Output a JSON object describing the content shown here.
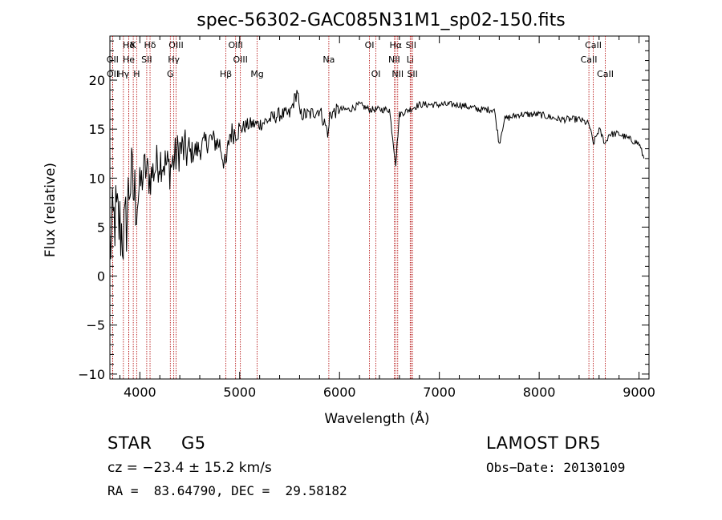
{
  "chart_data": {
    "type": "line",
    "title": "spec-56302-GAC085N31M1_sp02-150.fits",
    "xlabel": "Wavelength (Å)",
    "ylabel": "Flux (relative)",
    "xlim": [
      3700,
      9100
    ],
    "ylim": [
      -10.5,
      24.5
    ],
    "xticks": [
      4000,
      5000,
      6000,
      7000,
      8000,
      9000
    ],
    "yticks": [
      -10,
      -5,
      0,
      5,
      10,
      15,
      20
    ],
    "grid": false,
    "series": [
      {
        "x": [
          3700,
          3750,
          3800,
          3850,
          3900,
          3950,
          4000,
          4050,
          4100,
          4200,
          4300,
          4400,
          4500,
          4600,
          4700,
          4800,
          4860,
          4900,
          5000,
          5100,
          5200,
          5300,
          5400,
          5500,
          5580,
          5600,
          5700,
          5800,
          5890,
          5900,
          6000,
          6100,
          6200,
          6300,
          6400,
          6500,
          6563,
          6600,
          6700,
          6800,
          6900,
          7000,
          7200,
          7400,
          7550,
          7600,
          7650,
          7800,
          8000,
          8200,
          8400,
          8500,
          8542,
          8600,
          8662,
          8700,
          8800,
          8900,
          9000,
          9050
        ],
        "y": [
          3,
          6,
          5,
          4,
          10,
          8,
          9,
          11,
          10,
          12,
          11,
          13,
          12.5,
          13,
          14,
          13.5,
          11,
          14.5,
          15,
          15.5,
          15.5,
          16,
          16.5,
          16.5,
          19,
          16.5,
          16.5,
          17,
          14.5,
          16.5,
          17,
          17,
          17.5,
          17,
          17,
          17,
          11.5,
          16.5,
          17,
          17.5,
          17.5,
          17.5,
          17.5,
          17,
          17,
          13.5,
          16,
          16.5,
          16.5,
          16,
          16,
          15.5,
          13.5,
          15,
          13.5,
          14.5,
          14.5,
          14,
          13.5,
          12
        ]
      }
    ],
    "lines": [
      {
        "label": "Hδ",
        "x": 3889,
        "row": 0
      },
      {
        "label": "K",
        "x": 3934,
        "row": 0
      },
      {
        "label": "Hδ",
        "x": 4102,
        "row": 0
      },
      {
        "label": "OIII",
        "x": 4363,
        "row": 0
      },
      {
        "label": "OIII",
        "x": 4959,
        "row": 0
      },
      {
        "label": "OI",
        "x": 6300,
        "row": 0
      },
      {
        "label": "Hα",
        "x": 6563,
        "row": 0
      },
      {
        "label": "SII",
        "x": 6716,
        "row": 0
      },
      {
        "label": "CaII",
        "x": 8542,
        "row": 0
      },
      {
        "label": "OII",
        "x": 3727,
        "row": 1
      },
      {
        "label": "He",
        "x": 3889,
        "row": 1
      },
      {
        "label": "SII",
        "x": 4069,
        "row": 1
      },
      {
        "label": "Hγ",
        "x": 4340,
        "row": 1
      },
      {
        "label": "OIII",
        "x": 5007,
        "row": 1
      },
      {
        "label": "Na",
        "x": 5893,
        "row": 1
      },
      {
        "label": "NII",
        "x": 6548,
        "row": 1
      },
      {
        "label": "Li",
        "x": 6708,
        "row": 1
      },
      {
        "label": "CaII",
        "x": 8498,
        "row": 1
      },
      {
        "label": "OII",
        "x": 3729,
        "row": 2
      },
      {
        "label": "Hγ",
        "x": 3835,
        "row": 2
      },
      {
        "label": "H",
        "x": 3968,
        "row": 2
      },
      {
        "label": "G",
        "x": 4305,
        "row": 2
      },
      {
        "label": "Hβ",
        "x": 4861,
        "row": 2
      },
      {
        "label": "Mg",
        "x": 5175,
        "row": 2
      },
      {
        "label": "OI",
        "x": 6364,
        "row": 2
      },
      {
        "label": "NII",
        "x": 6583,
        "row": 2
      },
      {
        "label": "SII",
        "x": 6731,
        "row": 2
      },
      {
        "label": "CaII",
        "x": 8662,
        "row": 2
      }
    ]
  },
  "info": {
    "object_class": "STAR",
    "subclass": "G5",
    "survey": "LAMOST DR5",
    "cz": "cz = −23.4 ± 15.2 km/s",
    "obs_date": "Obs−Date: 20130109",
    "coords": "RA =  83.64790, DEC =  29.58182"
  }
}
